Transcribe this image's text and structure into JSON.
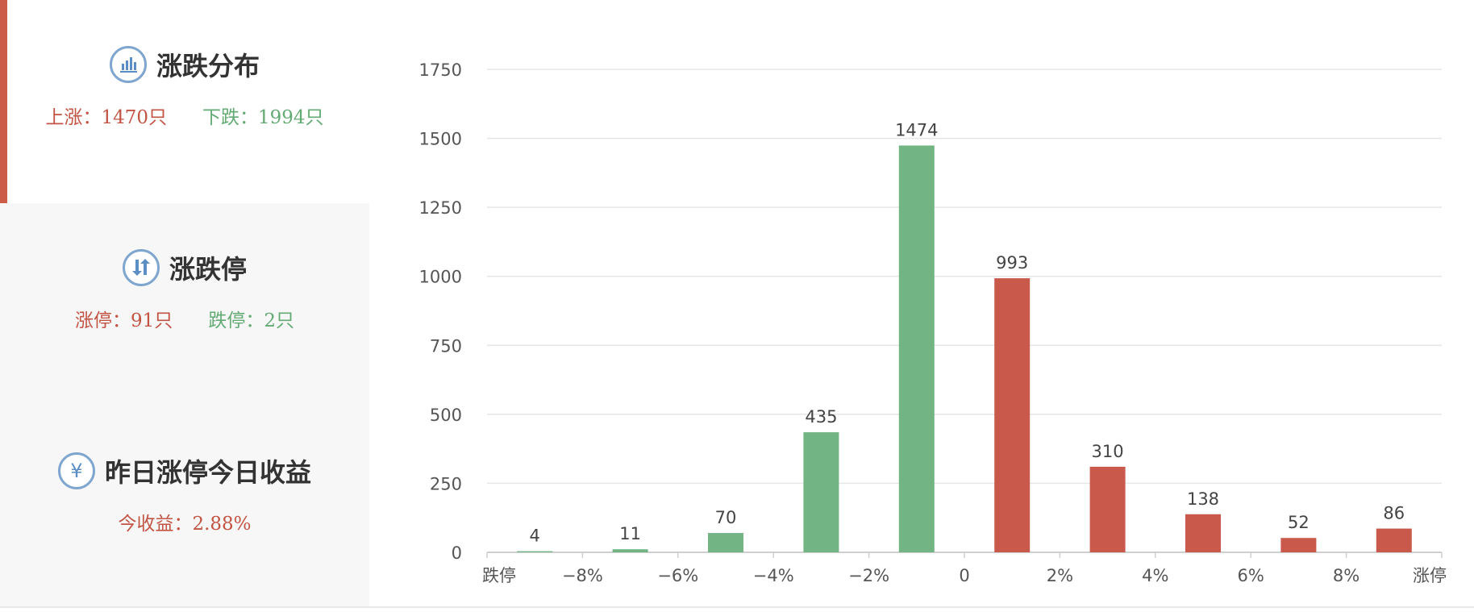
{
  "sidebar": {
    "distribution": {
      "title": "涨跌分布",
      "icon": "bar-chart-icon",
      "up_label": "上涨：",
      "up_value": "1470只",
      "down_label": "下跌：",
      "down_value": "1994只"
    },
    "limit": {
      "title": "涨跌停",
      "icon": "up-down-arrows-icon",
      "up_label": "涨停：",
      "up_value": "91只",
      "down_label": "跌停：",
      "down_value": "2只"
    },
    "yesterday": {
      "title": "昨日涨停今日收益",
      "icon": "yen-icon",
      "icon_glyph": "¥",
      "label": "今收益：",
      "value": "2.88%"
    }
  },
  "colors": {
    "up": "#c9594a",
    "down": "#72b483",
    "accent": "#cc5b47",
    "icon": "#7fa6cf"
  },
  "chart_data": {
    "type": "bar",
    "x_tick_labels": [
      "跌停",
      "−8%",
      "−6%",
      "−4%",
      "−2%",
      "0",
      "2%",
      "4%",
      "6%",
      "8%",
      "涨停"
    ],
    "bars": [
      {
        "value": 4,
        "direction": "down"
      },
      {
        "value": 11,
        "direction": "down"
      },
      {
        "value": 70,
        "direction": "down"
      },
      {
        "value": 435,
        "direction": "down"
      },
      {
        "value": 1474,
        "direction": "down"
      },
      {
        "value": 993,
        "direction": "up"
      },
      {
        "value": 310,
        "direction": "up"
      },
      {
        "value": 138,
        "direction": "up"
      },
      {
        "value": 52,
        "direction": "up"
      },
      {
        "value": 86,
        "direction": "up"
      }
    ],
    "y_ticks": [
      0,
      250,
      500,
      750,
      1000,
      1250,
      1500,
      1750
    ],
    "ylim": [
      0,
      1750
    ],
    "grid": true,
    "data_labels": true
  }
}
